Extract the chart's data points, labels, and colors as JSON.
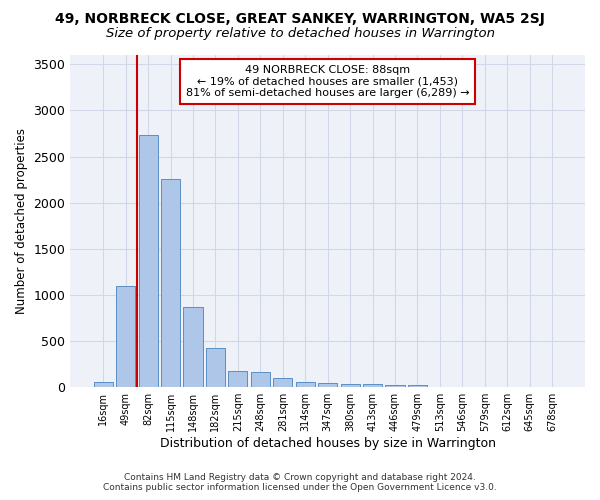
{
  "title": "49, NORBRECK CLOSE, GREAT SANKEY, WARRINGTON, WA5 2SJ",
  "subtitle": "Size of property relative to detached houses in Warrington",
  "xlabel": "Distribution of detached houses by size in Warrington",
  "ylabel": "Number of detached properties",
  "categories": [
    "16sqm",
    "49sqm",
    "82sqm",
    "115sqm",
    "148sqm",
    "182sqm",
    "215sqm",
    "248sqm",
    "281sqm",
    "314sqm",
    "347sqm",
    "380sqm",
    "413sqm",
    "446sqm",
    "479sqm",
    "513sqm",
    "546sqm",
    "579sqm",
    "612sqm",
    "645sqm",
    "678sqm"
  ],
  "bar_heights": [
    55,
    1100,
    2730,
    2260,
    870,
    420,
    175,
    165,
    95,
    60,
    45,
    40,
    30,
    25,
    20,
    5,
    5,
    0,
    0,
    0,
    0
  ],
  "bar_color": "#aec6e8",
  "bar_edge_color": "#5a8fc4",
  "marker_line_color": "#cc0000",
  "annotation_line1": "49 NORBRECK CLOSE: 88sqm",
  "annotation_line2": "← 19% of detached houses are smaller (1,453)",
  "annotation_line3": "81% of semi-detached houses are larger (6,289) →",
  "annotation_box_color": "#ffffff",
  "annotation_box_edge": "#cc0000",
  "grid_color": "#d0d8e8",
  "background_color": "#eef2f8",
  "footer1": "Contains HM Land Registry data © Crown copyright and database right 2024.",
  "footer2": "Contains public sector information licensed under the Open Government Licence v3.0.",
  "ylim": [
    0,
    3600
  ],
  "title_fontsize": 10,
  "subtitle_fontsize": 9.5
}
